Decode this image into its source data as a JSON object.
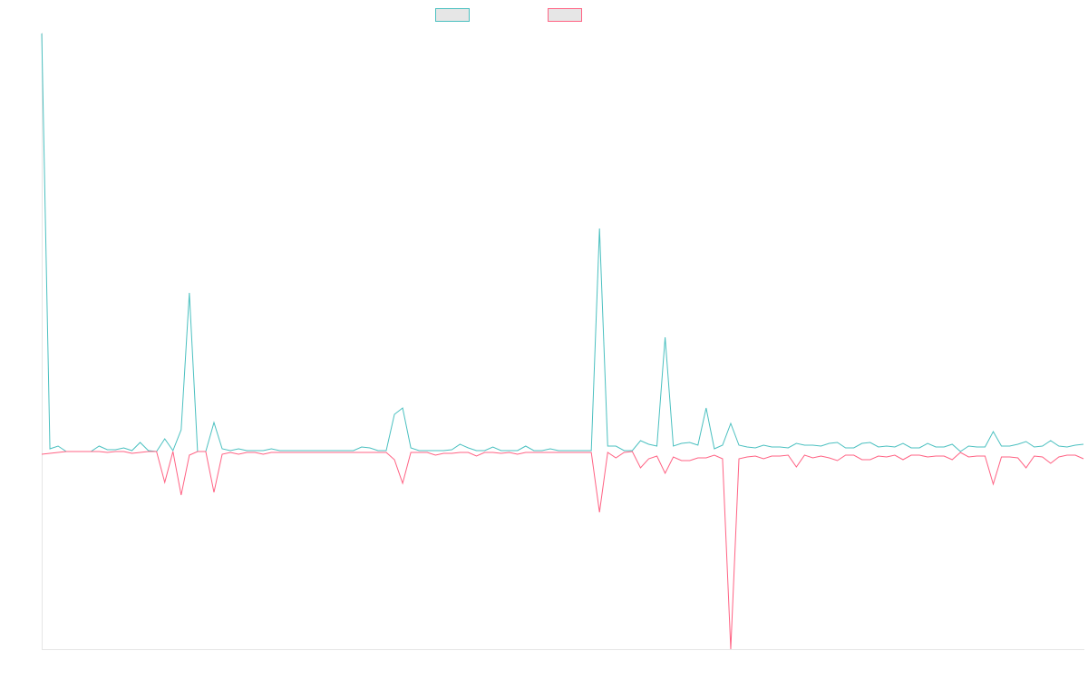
{
  "chart_data": {
    "type": "line",
    "title": "",
    "xlabel": "",
    "ylabel": "",
    "x_tick_labels_shown": false,
    "y_tick_labels_shown": false,
    "grid": false,
    "legend": "top",
    "ylim": [
      -218,
      461
    ],
    "series": [
      {
        "name": "",
        "color": "#4bc0c0",
        "values": [
          461,
          3,
          6,
          0,
          0,
          0,
          0,
          6,
          2,
          2,
          4,
          1,
          10,
          1,
          0,
          14,
          1,
          24,
          175,
          0,
          0,
          32,
          3,
          1,
          3,
          1,
          1,
          1,
          3,
          1,
          1,
          1,
          1,
          1,
          1,
          1,
          1,
          1,
          1,
          5,
          4,
          1,
          1,
          41,
          48,
          4,
          1,
          1,
          1,
          1,
          2,
          8,
          4,
          1,
          1,
          5,
          1,
          1,
          1,
          6,
          1,
          1,
          3,
          1,
          1,
          1,
          1,
          1,
          246,
          6,
          6,
          1,
          1,
          12,
          8,
          6,
          126,
          6,
          9,
          10,
          7,
          48,
          3,
          7,
          31,
          7,
          5,
          4,
          7,
          5,
          5,
          4,
          9,
          7,
          7,
          6,
          9,
          10,
          4,
          4,
          9,
          10,
          5,
          6,
          5,
          9,
          4,
          4,
          9,
          5,
          5,
          8,
          0,
          6,
          5,
          5,
          22,
          6,
          6,
          8,
          11,
          5,
          6,
          12,
          6,
          5,
          7,
          8
        ]
      },
      {
        "name": "",
        "color": "#ff6384",
        "values": [
          -3,
          -2,
          -1,
          0,
          0,
          0,
          0,
          0,
          -1,
          0,
          0,
          -2,
          -1,
          0,
          0,
          -34,
          0,
          -48,
          -4,
          0,
          0,
          -45,
          -3,
          -1,
          -3,
          -1,
          -1,
          -3,
          -1,
          -1,
          -1,
          -1,
          -1,
          -1,
          -1,
          -1,
          -1,
          -1,
          -1,
          -1,
          -1,
          -1,
          -1,
          -9,
          -35,
          -1,
          -1,
          -1,
          -4,
          -2,
          -2,
          -1,
          -1,
          -5,
          -1,
          -1,
          -2,
          -1,
          -3,
          -1,
          -1,
          -1,
          -1,
          -1,
          -1,
          -1,
          -1,
          -1,
          -67,
          -1,
          -7,
          -1,
          0,
          -18,
          -8,
          -5,
          -24,
          -6,
          -10,
          -10,
          -7,
          -7,
          -4,
          -8,
          -218,
          -8,
          -6,
          -5,
          -8,
          -5,
          -5,
          -4,
          -17,
          -4,
          -7,
          -5,
          -7,
          -10,
          -4,
          -4,
          -9,
          -9,
          -5,
          -6,
          -4,
          -9,
          -4,
          -4,
          -6,
          -5,
          -5,
          -9,
          -1,
          -6,
          -5,
          -5,
          -36,
          -6,
          -6,
          -7,
          -18,
          -5,
          -6,
          -13,
          -6,
          -4,
          -4,
          -8
        ]
      }
    ]
  }
}
